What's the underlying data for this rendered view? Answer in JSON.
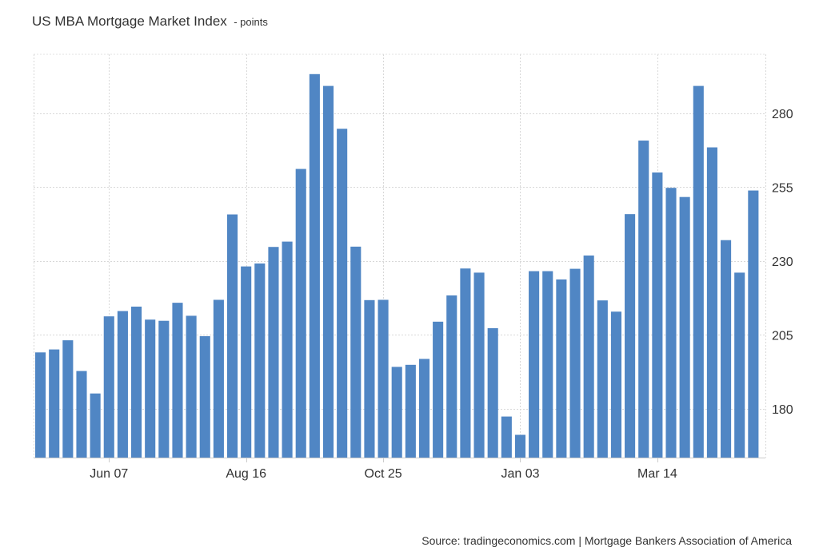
{
  "chart_data": {
    "type": "bar",
    "title": "US MBA Mortgage Market Index",
    "subtitle": "- points",
    "source": "Source: tradingeconomics.com | Mortgage Bankers Association of America",
    "bar_color": "#5086c4",
    "grid": true,
    "y_axis_side": "right",
    "ylim": [
      163.5,
      300
    ],
    "y_ticks": [
      180,
      205,
      230,
      255,
      280
    ],
    "x_tick_labels": [
      {
        "label": "Jun 07",
        "index": 5
      },
      {
        "label": "Aug 16",
        "index": 15
      },
      {
        "label": "Oct 25",
        "index": 25
      },
      {
        "label": "Jan 03",
        "index": 35
      },
      {
        "label": "Mar 14",
        "index": 45
      }
    ],
    "values": [
      199.1,
      200.1,
      203.2,
      192.8,
      185.2,
      211.3,
      213.1,
      214.6,
      210.2,
      209.8,
      215.9,
      211.5,
      204.6,
      216.9,
      245.8,
      228.2,
      229.2,
      234.8,
      236.6,
      261.2,
      293.3,
      289.3,
      274.8,
      234.9,
      216.8,
      216.9,
      194.2,
      194.9,
      196.9,
      209.5,
      218.4,
      227.5,
      226.1,
      207.3,
      177.4,
      171.2,
      226.6,
      226.6,
      223.8,
      227.4,
      231.9,
      216.7,
      212.9,
      245.9,
      270.8,
      260.0,
      254.8,
      251.7,
      289.3,
      268.5,
      237.1,
      226.1,
      253.9
    ]
  }
}
